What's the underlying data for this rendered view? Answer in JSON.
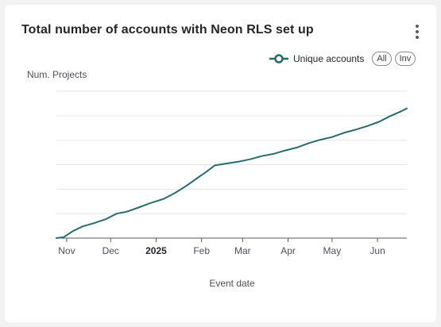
{
  "card": {
    "title": "Total number of accounts with Neon RLS set up",
    "menu_icon": "kebab-menu-icon"
  },
  "legend": {
    "series_label": "Unique accounts",
    "all_label": "All",
    "inv_label": "Inv"
  },
  "colors": {
    "series": "#2a6b6b",
    "grid": "#e3e5e8",
    "axis": "#55595f",
    "card_bg": "#ffffff",
    "page_bg": "#f2f2f2"
  },
  "chart_data": {
    "type": "line",
    "title": "Total number of accounts with Neon RLS set up",
    "ylabel": "Num. Projects",
    "xlabel": "Event date",
    "x_tick_labels": [
      {
        "label": "Nov",
        "date": "2024-11-01",
        "bold": false
      },
      {
        "label": "Dec",
        "date": "2024-12-01",
        "bold": false
      },
      {
        "label": "2025",
        "date": "2025-01-01",
        "bold": true
      },
      {
        "label": "Feb",
        "date": "2025-02-01",
        "bold": false
      },
      {
        "label": "Mar",
        "date": "2025-03-01",
        "bold": false
      },
      {
        "label": "Apr",
        "date": "2025-04-01",
        "bold": false
      },
      {
        "label": "May",
        "date": "2025-05-01",
        "bold": false
      },
      {
        "label": "Jun",
        "date": "2025-06-01",
        "bold": false
      }
    ],
    "xlim": [
      "2024-10-25",
      "2025-06-21"
    ],
    "ylim": [
      0,
      6
    ],
    "y_tick_values": [
      0,
      1,
      2,
      3,
      4,
      5,
      6
    ],
    "y_tick_labels_shown": false,
    "grid": true,
    "legend_position": "top-right",
    "series": [
      {
        "name": "Unique accounts",
        "x": [
          "2024-10-25",
          "2024-10-30",
          "2024-11-05",
          "2024-11-12",
          "2024-11-20",
          "2024-11-28",
          "2024-12-05",
          "2024-12-12",
          "2024-12-20",
          "2024-12-28",
          "2025-01-06",
          "2025-01-14",
          "2025-01-22",
          "2025-01-29",
          "2025-02-04",
          "2025-02-10",
          "2025-02-18",
          "2025-02-26",
          "2025-03-06",
          "2025-03-14",
          "2025-03-22",
          "2025-03-30",
          "2025-04-07",
          "2025-04-15",
          "2025-04-23",
          "2025-05-01",
          "2025-05-09",
          "2025-05-17",
          "2025-05-25",
          "2025-06-02",
          "2025-06-09",
          "2025-06-16",
          "2025-06-21"
        ],
        "y": [
          0.0,
          0.04,
          0.28,
          0.48,
          0.62,
          0.78,
          1.0,
          1.08,
          1.25,
          1.43,
          1.6,
          1.85,
          2.15,
          2.45,
          2.7,
          2.97,
          3.05,
          3.12,
          3.22,
          3.35,
          3.44,
          3.58,
          3.7,
          3.88,
          4.02,
          4.13,
          4.3,
          4.43,
          4.58,
          4.75,
          4.97,
          5.15,
          5.3
        ]
      }
    ]
  }
}
